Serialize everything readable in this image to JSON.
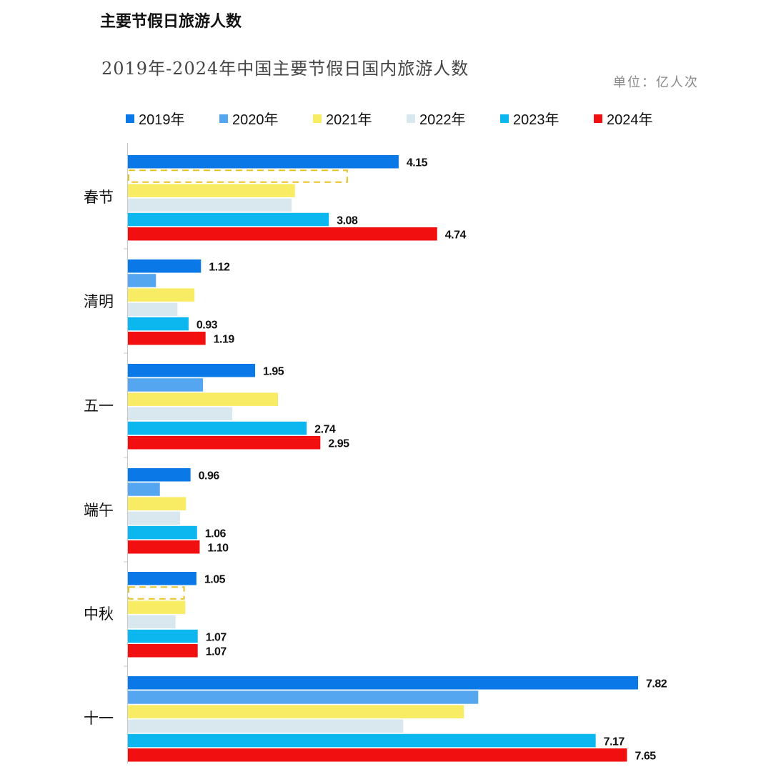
{
  "title": "主要节假日旅游人数",
  "subtitle": "2019年-2024年中国主要节假日国内旅游人数",
  "unit_label": "单位：亿人次",
  "colors": {
    "2019年": "#0a78e6",
    "2020年": "#55a6f0",
    "2021年": "#f7ec63",
    "2022年": "#d9e8ef",
    "2023年": "#0cb7f0",
    "2024年": "#f20f0f",
    "missing_outline": "#e6c229"
  },
  "chart_data": {
    "type": "bar",
    "orientation": "horizontal",
    "categories": [
      "春节",
      "清明",
      "五一",
      "端午",
      "中秋",
      "十一"
    ],
    "series": [
      {
        "name": "2019年",
        "values": [
          4.15,
          1.12,
          1.95,
          0.96,
          1.05,
          7.82
        ]
      },
      {
        "name": "2020年",
        "values": [
          null,
          0.43,
          1.15,
          0.49,
          null,
          5.37
        ]
      },
      {
        "name": "2021年",
        "values": [
          2.56,
          1.02,
          2.3,
          0.89,
          0.88,
          5.15
        ]
      },
      {
        "name": "2022年",
        "values": [
          2.51,
          0.76,
          1.6,
          0.8,
          0.73,
          4.22
        ]
      },
      {
        "name": "2023年",
        "values": [
          3.08,
          0.93,
          2.74,
          1.06,
          1.07,
          7.17
        ]
      },
      {
        "name": "2024年",
        "values": [
          4.74,
          1.19,
          2.95,
          1.1,
          1.07,
          7.65
        ]
      }
    ],
    "data_labels": {
      "2019年": [
        "4.15",
        "1.12",
        "1.95",
        "0.96",
        "1.05",
        "7.82"
      ],
      "2023年": [
        "3.08",
        "0.93",
        "2.74",
        "1.06",
        "1.07",
        "7.17"
      ],
      "2024年": [
        "4.74",
        "1.19",
        "2.95",
        "1.10",
        "1.07",
        "7.65"
      ]
    },
    "missing_marker_values": {
      "春节": 3.35,
      "中秋": 0.85
    },
    "xlim": [
      0,
      7.82
    ],
    "grid": false,
    "legend_position": "top"
  }
}
